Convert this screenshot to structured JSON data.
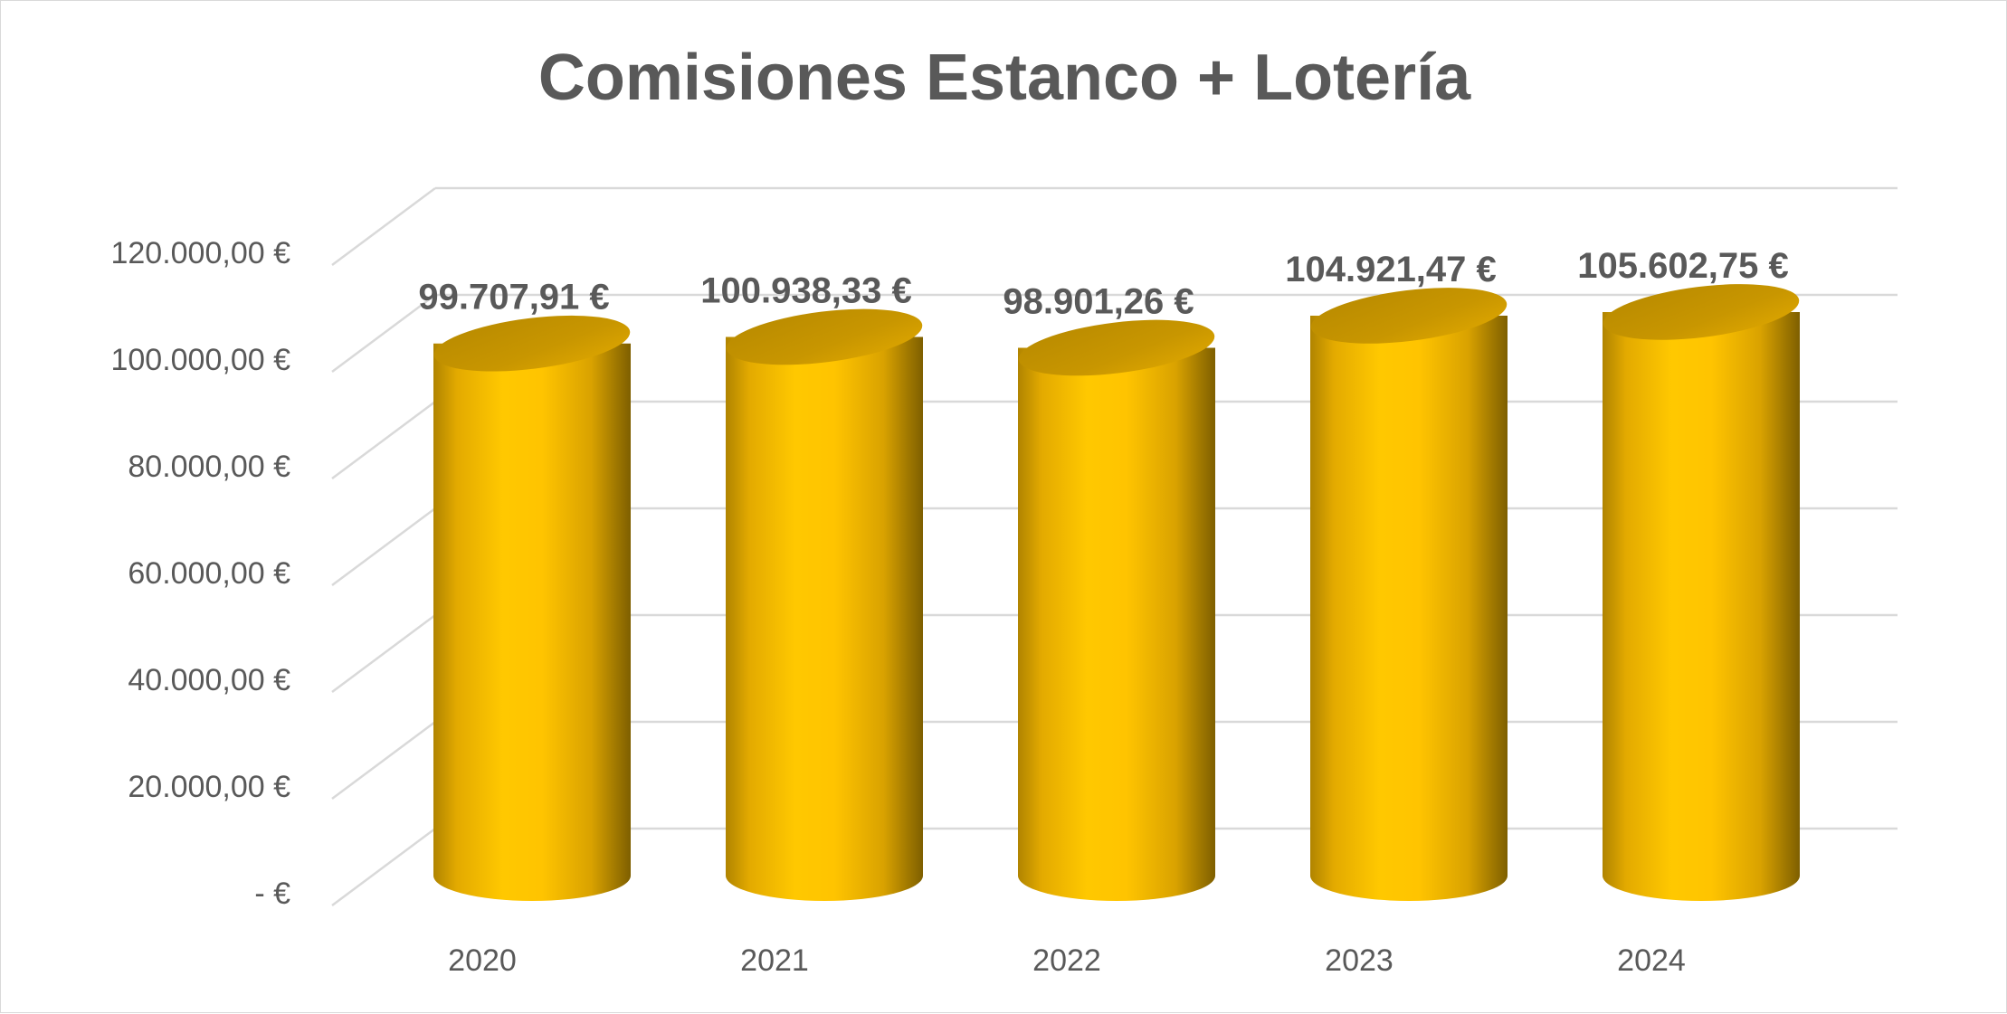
{
  "chart_data": {
    "type": "bar",
    "style": "3d-cylinder",
    "title": "Comisiones Estanco + Lotería",
    "categories": [
      "2020",
      "2021",
      "2022",
      "2023",
      "2024"
    ],
    "values": [
      99707.91,
      100938.33,
      98901.26,
      104921.47,
      105602.75
    ],
    "data_labels": [
      "99.707,91 €",
      "100.938,33 €",
      "98.901,26 €",
      "104.921,47 €",
      "105.602,75 €"
    ],
    "yticks": [
      0,
      20000,
      40000,
      60000,
      80000,
      100000,
      120000
    ],
    "ytick_labels": [
      "-  €",
      "20.000,00 €",
      "40.000,00 €",
      "60.000,00 €",
      "80.000,00 €",
      "100.000,00 €",
      "120.000,00 €"
    ],
    "ylim": [
      0,
      120000
    ],
    "xlabel": "",
    "ylabel": "",
    "grid": true,
    "legend": "none",
    "colors": {
      "bar": "#ffc000",
      "bar_dark": "#a67c00",
      "grid": "#d9d9d9",
      "text": "#595959"
    }
  }
}
